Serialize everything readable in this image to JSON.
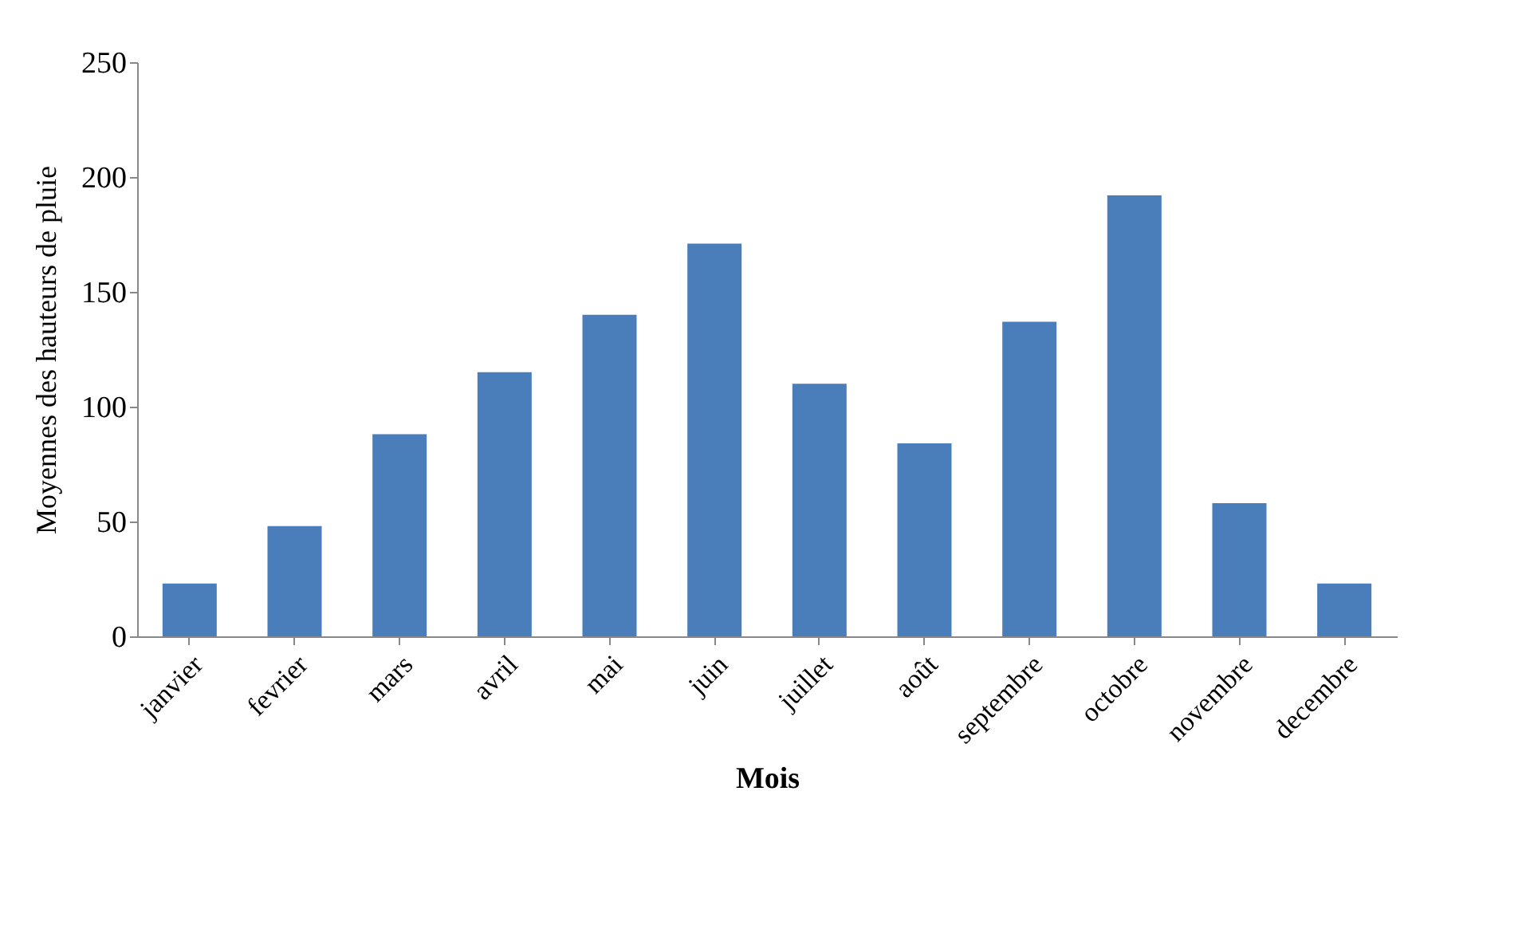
{
  "chart_data": {
    "type": "bar",
    "categories": [
      "janvier",
      "fevrier",
      "mars",
      "avril",
      "mai",
      "juin",
      "juillet",
      "août",
      "septembre",
      "octobre",
      "novembre",
      "decembre"
    ],
    "values": [
      23,
      48,
      88,
      115,
      140,
      171,
      110,
      84,
      137,
      192,
      58,
      23
    ],
    "color": "#4a7ebb",
    "xlabel": "Mois",
    "ylabel": "Moyennes  des hauteurs de pluie",
    "ylim": [
      0,
      250
    ],
    "yticks": [
      0,
      50,
      100,
      150,
      200,
      250
    ],
    "grid": false
  }
}
